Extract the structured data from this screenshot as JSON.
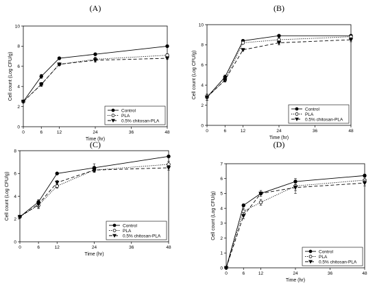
{
  "figure": {
    "panels": [
      {
        "id": "A",
        "label": "(A)"
      },
      {
        "id": "B",
        "label": "(B)"
      },
      {
        "id": "C",
        "label": "(C)"
      },
      {
        "id": "D",
        "label": "(D)"
      }
    ]
  },
  "chart_data": [
    {
      "type": "line",
      "title": "(A)",
      "xlabel": "Time (hr)",
      "ylabel": "Cell count (Log CFU/g)",
      "x": [
        0,
        6,
        12,
        24,
        48
      ],
      "xticks": [
        0,
        6,
        12,
        24,
        36,
        48
      ],
      "xlim": [
        0,
        48
      ],
      "yticks": [
        0,
        2,
        4,
        6,
        8,
        10
      ],
      "ylim": [
        0,
        10
      ],
      "legend_position": "bottom-right",
      "series": [
        {
          "name": "Control",
          "marker": "filled-circle",
          "line": "solid",
          "values": [
            2.5,
            5.0,
            6.8,
            7.2,
            8.0
          ],
          "errors": [
            0.1,
            0.2,
            0.1,
            0.1,
            0.1
          ]
        },
        {
          "name": "PLA",
          "marker": "open-circle",
          "line": "dotted",
          "values": [
            2.5,
            4.2,
            6.2,
            6.7,
            7.1
          ],
          "errors": [
            0.1,
            0.2,
            0.1,
            0.2,
            0.15
          ]
        },
        {
          "name": "0.5% chitosan-PLA",
          "marker": "filled-triangle-down",
          "line": "dashed",
          "values": [
            2.5,
            4.2,
            6.2,
            6.6,
            6.8
          ],
          "errors": [
            0.1,
            0.2,
            0.1,
            0.2,
            0.1
          ]
        }
      ]
    },
    {
      "type": "line",
      "title": "(B)",
      "xlabel": "Time (hr)",
      "ylabel": "Cell count (Log CFU/g)",
      "x": [
        0,
        6,
        12,
        24,
        48
      ],
      "xticks": [
        0,
        6,
        12,
        24,
        36,
        48
      ],
      "xlim": [
        0,
        48
      ],
      "yticks": [
        0,
        2,
        4,
        6,
        8,
        10
      ],
      "ylim": [
        0,
        10
      ],
      "legend_position": "bottom-right",
      "series": [
        {
          "name": "Control",
          "marker": "filled-circle",
          "line": "solid",
          "values": [
            2.8,
            4.8,
            8.4,
            8.9,
            8.9
          ],
          "errors": [
            0.3,
            0.2,
            0.1,
            0.1,
            0.1
          ]
        },
        {
          "name": "PLA",
          "marker": "open-circle",
          "line": "dotted",
          "values": [
            2.8,
            4.5,
            8.2,
            8.5,
            8.8
          ],
          "errors": [
            0.3,
            0.2,
            0.1,
            0.2,
            0.2
          ]
        },
        {
          "name": "0.5% chitosan-PLA",
          "marker": "filled-triangle-down",
          "line": "dashed",
          "values": [
            2.8,
            4.5,
            7.5,
            8.2,
            8.5
          ],
          "errors": [
            0.3,
            0.2,
            0.1,
            0.2,
            0.2
          ]
        }
      ]
    },
    {
      "type": "line",
      "title": "(C)",
      "xlabel": "Time (hr)",
      "ylabel": "Cell count (Log CFU/g)",
      "x": [
        0,
        6,
        12,
        24,
        48
      ],
      "xticks": [
        0,
        6,
        12,
        24,
        36,
        48
      ],
      "xlim": [
        0,
        48
      ],
      "yticks": [
        0,
        2,
        4,
        6,
        8
      ],
      "ylim": [
        0,
        8
      ],
      "legend_position": "bottom-right",
      "series": [
        {
          "name": "Control",
          "marker": "filled-circle",
          "line": "solid",
          "values": [
            2.2,
            3.5,
            6.0,
            6.5,
            7.5
          ],
          "errors": [
            0.1,
            0.2,
            0.1,
            0.35,
            0.1
          ]
        },
        {
          "name": "PLA",
          "marker": "open-circle",
          "line": "dotted",
          "values": [
            2.2,
            3.2,
            4.9,
            6.3,
            6.8
          ],
          "errors": [
            0.1,
            0.3,
            0.2,
            0.2,
            0.25
          ]
        },
        {
          "name": "0.5% chitosan-PLA",
          "marker": "filled-triangle-down",
          "line": "dashed",
          "values": [
            2.2,
            3.3,
            5.2,
            6.3,
            6.5
          ],
          "errors": [
            0.1,
            0.3,
            0.2,
            0.2,
            0.2
          ]
        }
      ]
    },
    {
      "type": "line",
      "title": "(D)",
      "xlabel": "Time (hr)",
      "ylabel": "Cell count (Log CFU/g)",
      "x": [
        0,
        6,
        12,
        24,
        48
      ],
      "xticks": [
        0,
        6,
        12,
        24,
        36,
        48
      ],
      "xlim": [
        0,
        48
      ],
      "yticks": [
        0,
        1,
        2,
        3,
        4,
        5,
        6,
        7
      ],
      "ylim": [
        0,
        7
      ],
      "legend_position": "bottom-right",
      "series": [
        {
          "name": "Control",
          "marker": "filled-circle",
          "line": "solid",
          "values": [
            0,
            4.2,
            5.0,
            5.8,
            6.2
          ],
          "errors": [
            0.05,
            0.1,
            0.1,
            0.1,
            0.1
          ]
        },
        {
          "name": "PLA",
          "marker": "open-circle",
          "line": "dotted",
          "values": [
            0,
            3.8,
            4.4,
            5.5,
            5.9
          ],
          "errors": [
            0.05,
            0.2,
            0.2,
            0.5,
            0.2
          ]
        },
        {
          "name": "0.5% chitosan-PLA",
          "marker": "filled-triangle-down",
          "line": "dashed",
          "values": [
            0,
            3.5,
            5.0,
            5.4,
            5.7
          ],
          "errors": [
            0.05,
            0.2,
            0.2,
            0.2,
            0.2
          ]
        }
      ]
    }
  ]
}
